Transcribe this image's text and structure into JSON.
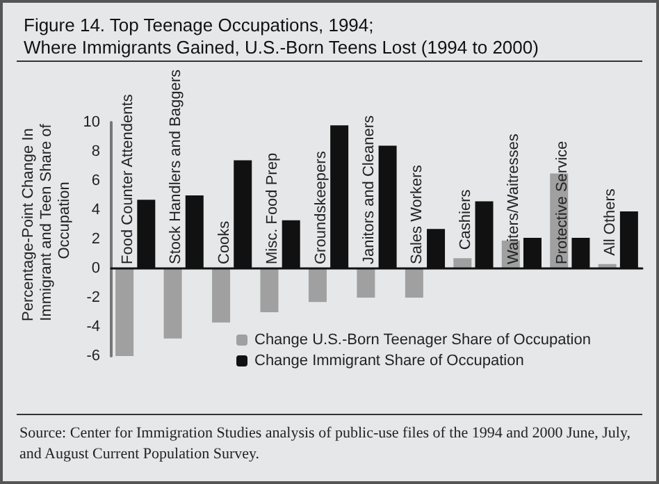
{
  "chart_data": {
    "type": "bar",
    "title": "Figure 14. Top Teenage Occupations, 1994;\nWhere Immigrants Gained, U.S.-Born Teens Lost (1994 to 2000)",
    "ylabel": "Percentage-Point Change In Immigrant and Teen Share of Occupation",
    "categories": [
      "Food Counter Attendents",
      "Stock Handlers and Baggers",
      "Cooks",
      "Misc. Food Prep",
      "Groundskeepers",
      "Janitors and Cleaners",
      "Sales Workers",
      "Cashiers",
      "Waiters/Waitresses",
      "Protective Service",
      "All Others"
    ],
    "series": [
      {
        "name": "Change U.S.-Born Teenager Share of Occupation",
        "color": "#a0a0a0",
        "values": [
          -6.0,
          -4.8,
          -3.7,
          -3.0,
          -2.3,
          -2.0,
          -2.0,
          0.7,
          1.9,
          6.5,
          0.3
        ]
      },
      {
        "name": "Change Immigrant Share of Occupation",
        "color": "#111111",
        "values": [
          4.7,
          5.0,
          7.4,
          3.3,
          9.8,
          8.4,
          2.7,
          4.6,
          2.1,
          2.1,
          3.9
        ]
      }
    ],
    "ylim": [
      -6,
      10
    ],
    "yticks": [
      -6,
      -4,
      -2,
      0,
      2,
      4,
      6,
      8,
      10
    ],
    "grid": false,
    "legend": "bottom",
    "annotations": [
      "Source: Center for Immigration Studies analysis of public-use files of the 1994 and 2000 June, July, and August Current Population Survey."
    ]
  }
}
